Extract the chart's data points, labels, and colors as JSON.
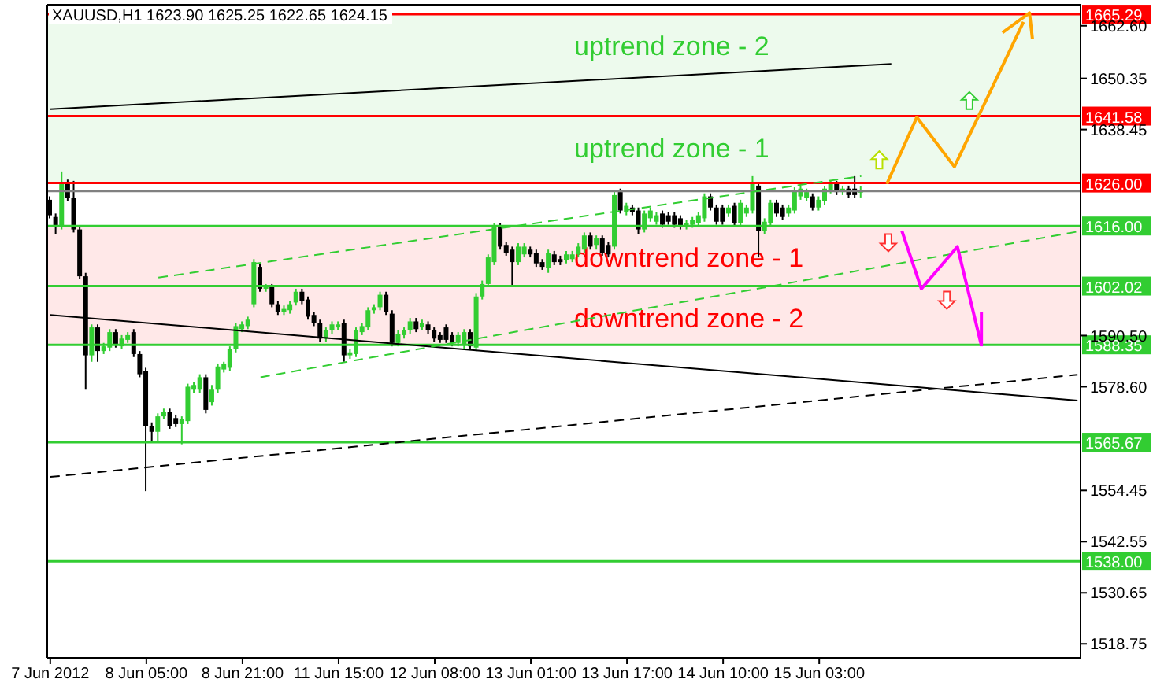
{
  "chart_data": {
    "type": "candlestick",
    "title": "XAUUSD,H1  1623.90 1625.25 1622.65 1624.15",
    "categories": [
      "7 Jun 2012",
      null,
      null,
      null,
      null,
      null,
      null,
      null,
      null,
      null,
      null,
      null,
      null,
      null,
      null,
      null,
      "8 Jun 05:00",
      null,
      null,
      null,
      null,
      null,
      null,
      null,
      null,
      null,
      null,
      null,
      null,
      null,
      null,
      null,
      "8 Jun 21:00",
      null,
      null,
      null,
      null,
      null,
      null,
      null,
      null,
      null,
      null,
      null,
      null,
      null,
      null,
      null,
      "11 Jun 15:00",
      null,
      null,
      null,
      null,
      null,
      null,
      null,
      null,
      null,
      null,
      null,
      null,
      null,
      null,
      null,
      "12 Jun 08:00",
      null,
      null,
      null,
      null,
      null,
      null,
      null,
      null,
      null,
      null,
      null,
      null,
      null,
      null,
      null,
      "13 Jun 01:00",
      null,
      null,
      null,
      null,
      null,
      null,
      null,
      null,
      null,
      null,
      null,
      null,
      null,
      null,
      null,
      "13 Jun 17:00",
      null,
      null,
      null,
      null,
      null,
      null,
      null,
      null,
      null,
      null,
      null,
      null,
      null,
      null,
      null,
      "14 Jun 10:00",
      null,
      null,
      null,
      null,
      null,
      null,
      null,
      null,
      null,
      null,
      null,
      null,
      null,
      null,
      null,
      "15 Jun 03:00",
      null,
      null,
      null,
      null,
      null,
      null,
      null,
      null,
      null,
      null,
      null,
      null,
      null,
      null,
      null,
      null,
      null,
      null,
      null,
      null,
      null,
      null,
      null,
      null,
      null,
      null,
      null,
      null,
      null,
      null,
      null,
      null,
      null,
      null,
      null,
      null,
      null,
      null,
      null,
      null,
      null,
      null,
      null
    ],
    "ohlc": [
      [
        1622.1,
        1622.9,
        1617.8,
        1618.5
      ],
      [
        1618.1,
        1618.9,
        1614.1,
        1616.0
      ],
      [
        1616.0,
        1628.7,
        1615.2,
        1625.8
      ],
      [
        1625.8,
        1626.8,
        1621.8,
        1622.5
      ],
      [
        1622.5,
        1626.5,
        1614.5,
        1615.2
      ],
      [
        1615.2,
        1616.0,
        1603.6,
        1604.3
      ],
      [
        1604.3,
        1605.1,
        1577.9,
        1585.9
      ],
      [
        1585.9,
        1593.1,
        1584.4,
        1592.4
      ],
      [
        1592.4,
        1593.1,
        1584.4,
        1586.9
      ],
      [
        1586.9,
        1588.8,
        1586.2,
        1588.0
      ],
      [
        1587.7,
        1592.0,
        1586.9,
        1591.3
      ],
      [
        1591.3,
        1592.0,
        1587.7,
        1588.4
      ],
      [
        1588.0,
        1590.6,
        1587.3,
        1589.8
      ],
      [
        1589.5,
        1591.3,
        1588.8,
        1590.6
      ],
      [
        1591.3,
        1592.0,
        1585.5,
        1586.2
      ],
      [
        1586.2,
        1586.9,
        1580.8,
        1581.5
      ],
      [
        1582.2,
        1583.0,
        1554.3,
        1569.5
      ],
      [
        1569.5,
        1570.3,
        1565.9,
        1568.1
      ],
      [
        1568.1,
        1572.4,
        1565.9,
        1571.7
      ],
      [
        1571.7,
        1573.5,
        1571.0,
        1572.8
      ],
      [
        1572.8,
        1573.5,
        1568.8,
        1569.5
      ],
      [
        1571.3,
        1572.1,
        1569.2,
        1569.9
      ],
      [
        1569.9,
        1571.7,
        1565.2,
        1571.0
      ],
      [
        1570.6,
        1579.3,
        1569.9,
        1578.6
      ],
      [
        1577.9,
        1579.7,
        1577.1,
        1579.0
      ],
      [
        1577.9,
        1581.5,
        1577.1,
        1580.8
      ],
      [
        1580.8,
        1581.5,
        1572.4,
        1573.2
      ],
      [
        1575.0,
        1579.0,
        1574.2,
        1577.9
      ],
      [
        1577.9,
        1584.0,
        1577.1,
        1583.3
      ],
      [
        1582.6,
        1584.4,
        1581.9,
        1584.0
      ],
      [
        1583.0,
        1588.0,
        1582.2,
        1587.3
      ],
      [
        1587.3,
        1593.5,
        1586.6,
        1592.7
      ],
      [
        1592.0,
        1593.8,
        1591.3,
        1593.1
      ],
      [
        1592.7,
        1594.9,
        1592.0,
        1594.2
      ],
      [
        1597.8,
        1608.3,
        1597.1,
        1607.6
      ],
      [
        1606.5,
        1607.3,
        1600.7,
        1601.4
      ],
      [
        1601.4,
        1602.5,
        1600.7,
        1602.2
      ],
      [
        1602.2,
        1602.5,
        1597.1,
        1597.8
      ],
      [
        1597.8,
        1598.5,
        1595.3,
        1596.0
      ],
      [
        1596.0,
        1597.5,
        1595.3,
        1596.7
      ],
      [
        1596.4,
        1598.5,
        1595.6,
        1597.8
      ],
      [
        1598.2,
        1601.4,
        1597.5,
        1600.7
      ],
      [
        1600.7,
        1601.4,
        1597.8,
        1598.5
      ],
      [
        1598.9,
        1599.6,
        1594.2,
        1594.9
      ],
      [
        1595.3,
        1596.0,
        1592.7,
        1593.5
      ],
      [
        1593.5,
        1594.2,
        1589.1,
        1589.8
      ],
      [
        1589.8,
        1592.4,
        1589.1,
        1591.7
      ],
      [
        1591.7,
        1593.8,
        1590.9,
        1593.1
      ],
      [
        1592.4,
        1593.8,
        1591.7,
        1593.1
      ],
      [
        1593.5,
        1594.2,
        1584.4,
        1585.9
      ],
      [
        1585.9,
        1587.3,
        1585.1,
        1586.6
      ],
      [
        1586.2,
        1592.4,
        1585.5,
        1591.7
      ],
      [
        1591.3,
        1593.5,
        1590.6,
        1592.7
      ],
      [
        1592.4,
        1597.1,
        1591.7,
        1596.4
      ],
      [
        1596.4,
        1597.8,
        1595.6,
        1597.1
      ],
      [
        1597.1,
        1600.7,
        1596.4,
        1600.0
      ],
      [
        1600.0,
        1600.7,
        1595.3,
        1596.0
      ],
      [
        1595.6,
        1596.4,
        1588.0,
        1588.8
      ],
      [
        1588.8,
        1591.7,
        1588.0,
        1590.9
      ],
      [
        1590.6,
        1592.4,
        1589.8,
        1591.7
      ],
      [
        1591.7,
        1594.6,
        1590.9,
        1593.8
      ],
      [
        1593.8,
        1594.6,
        1591.3,
        1592.0
      ],
      [
        1592.4,
        1594.2,
        1591.7,
        1593.5
      ],
      [
        1593.1,
        1593.8,
        1590.9,
        1591.7
      ],
      [
        1591.7,
        1592.4,
        1589.1,
        1589.8
      ],
      [
        1590.6,
        1591.3,
        1588.8,
        1589.5
      ],
      [
        1592.4,
        1593.1,
        1588.8,
        1589.5
      ],
      [
        1590.6,
        1591.3,
        1588.0,
        1588.8
      ],
      [
        1588.8,
        1591.3,
        1588.0,
        1590.6
      ],
      [
        1588.4,
        1592.0,
        1587.3,
        1591.3
      ],
      [
        1591.3,
        1592.0,
        1587.3,
        1588.0
      ],
      [
        1587.7,
        1600.4,
        1586.9,
        1599.6
      ],
      [
        1599.6,
        1603.3,
        1598.9,
        1602.5
      ],
      [
        1602.5,
        1609.4,
        1601.8,
        1608.7
      ],
      [
        1607.6,
        1616.7,
        1606.9,
        1616.0
      ],
      [
        1616.0,
        1616.7,
        1610.5,
        1611.2
      ],
      [
        1611.6,
        1612.3,
        1609.1,
        1609.8
      ],
      [
        1610.5,
        1611.2,
        1602.2,
        1607.6
      ],
      [
        1607.6,
        1612.0,
        1606.9,
        1611.2
      ],
      [
        1609.4,
        1612.0,
        1608.7,
        1611.2
      ],
      [
        1610.5,
        1611.2,
        1608.7,
        1609.4
      ],
      [
        1609.8,
        1610.5,
        1606.5,
        1607.3
      ],
      [
        1607.6,
        1608.3,
        1605.8,
        1606.5
      ],
      [
        1606.2,
        1610.5,
        1605.1,
        1609.8
      ],
      [
        1609.4,
        1610.2,
        1606.9,
        1607.6
      ],
      [
        1608.3,
        1609.1,
        1606.9,
        1607.6
      ],
      [
        1608.0,
        1610.2,
        1607.3,
        1609.4
      ],
      [
        1608.3,
        1610.2,
        1607.6,
        1609.4
      ],
      [
        1609.4,
        1612.0,
        1608.7,
        1611.2
      ],
      [
        1610.5,
        1614.5,
        1609.8,
        1613.8
      ],
      [
        1613.8,
        1614.5,
        1610.5,
        1611.2
      ],
      [
        1611.6,
        1613.8,
        1610.5,
        1613.1
      ],
      [
        1613.1,
        1613.8,
        1609.1,
        1609.8
      ],
      [
        1611.6,
        1612.3,
        1608.7,
        1609.4
      ],
      [
        1611.2,
        1623.9,
        1610.5,
        1623.2
      ],
      [
        1623.9,
        1624.7,
        1618.9,
        1619.6
      ],
      [
        1619.2,
        1621.4,
        1618.5,
        1620.7
      ],
      [
        1620.3,
        1621.0,
        1618.5,
        1619.2
      ],
      [
        1619.6,
        1620.3,
        1614.1,
        1615.2
      ],
      [
        1615.2,
        1619.6,
        1614.5,
        1618.9
      ],
      [
        1617.8,
        1620.3,
        1617.0,
        1619.6
      ],
      [
        1617.0,
        1619.2,
        1616.3,
        1618.5
      ],
      [
        1618.9,
        1619.6,
        1615.6,
        1616.3
      ],
      [
        1618.5,
        1619.2,
        1616.3,
        1617.0
      ],
      [
        1618.5,
        1619.2,
        1615.6,
        1616.3
      ],
      [
        1617.8,
        1618.5,
        1615.2,
        1616.0
      ],
      [
        1616.0,
        1617.4,
        1615.2,
        1616.7
      ],
      [
        1616.3,
        1618.1,
        1615.6,
        1617.4
      ],
      [
        1616.7,
        1619.2,
        1616.0,
        1618.5
      ],
      [
        1617.8,
        1623.6,
        1617.0,
        1622.9
      ],
      [
        1622.9,
        1623.6,
        1619.6,
        1620.3
      ],
      [
        1620.3,
        1621.0,
        1616.3,
        1617.0
      ],
      [
        1620.3,
        1621.0,
        1616.3,
        1617.0
      ],
      [
        1618.9,
        1621.0,
        1618.1,
        1620.3
      ],
      [
        1620.7,
        1621.4,
        1616.0,
        1616.7
      ],
      [
        1616.7,
        1622.1,
        1616.0,
        1621.4
      ],
      [
        1618.9,
        1621.0,
        1618.1,
        1620.3
      ],
      [
        1619.6,
        1627.6,
        1618.9,
        1625.8
      ],
      [
        1625.4,
        1626.1,
        1608.7,
        1614.9
      ],
      [
        1614.9,
        1617.8,
        1614.1,
        1617.0
      ],
      [
        1616.7,
        1622.1,
        1616.0,
        1621.4
      ],
      [
        1621.4,
        1622.1,
        1618.1,
        1618.9
      ],
      [
        1620.3,
        1621.0,
        1617.4,
        1618.1
      ],
      [
        1618.9,
        1621.0,
        1618.1,
        1620.3
      ],
      [
        1619.6,
        1625.0,
        1618.9,
        1624.3
      ],
      [
        1622.9,
        1625.4,
        1622.1,
        1624.7
      ],
      [
        1622.5,
        1624.7,
        1621.8,
        1623.9
      ],
      [
        1622.9,
        1623.6,
        1619.6,
        1620.3
      ],
      [
        1620.3,
        1622.9,
        1619.6,
        1622.1
      ],
      [
        1621.8,
        1625.4,
        1621.0,
        1624.7
      ],
      [
        1624.3,
        1626.5,
        1623.6,
        1625.8
      ],
      [
        1625.8,
        1626.5,
        1623.2,
        1623.9
      ],
      [
        1623.9,
        1625.4,
        1623.2,
        1624.7
      ],
      [
        1624.7,
        1625.4,
        1622.5,
        1623.2
      ],
      [
        1624.7,
        1627.6,
        1622.5,
        1623.2
      ],
      [
        1623.9,
        1625.25,
        1622.65,
        1624.15
      ],
      null,
      null,
      null,
      null,
      null,
      null,
      null,
      null,
      null,
      null,
      null,
      null,
      null,
      null,
      null,
      null,
      null,
      null,
      null,
      null,
      null,
      null,
      null,
      null,
      null,
      null,
      null,
      null,
      null,
      null,
      null,
      null,
      null,
      null,
      null,
      null
    ],
    "colors": [
      "#000000",
      "#000000",
      "#32cd32",
      "#000000",
      "#000000",
      "#000000",
      "#000000",
      "#32cd32",
      "#000000",
      "#32cd32",
      "#32cd32",
      "#000000",
      "#32cd32",
      "#32cd32",
      "#000000",
      "#000000",
      "#000000",
      "#000000",
      "#32cd32",
      "#32cd32",
      "#000000",
      "#000000",
      "#32cd32",
      "#32cd32",
      "#32cd32",
      "#32cd32",
      "#000000",
      "#32cd32",
      "#32cd32",
      "#32cd32",
      "#32cd32",
      "#32cd32",
      "#32cd32",
      "#32cd32",
      "#32cd32",
      "#000000",
      "#32cd32",
      "#000000",
      "#000000",
      "#32cd32",
      "#32cd32",
      "#32cd32",
      "#000000",
      "#000000",
      "#000000",
      "#000000",
      "#32cd32",
      "#32cd32",
      "#32cd32",
      "#000000",
      "#32cd32",
      "#32cd32",
      "#32cd32",
      "#32cd32",
      "#32cd32",
      "#32cd32",
      "#000000",
      "#000000",
      "#32cd32",
      "#32cd32",
      "#32cd32",
      "#000000",
      "#32cd32",
      "#000000",
      "#000000",
      "#000000",
      "#000000",
      "#000000",
      "#32cd32",
      "#32cd32",
      "#000000",
      "#32cd32",
      "#32cd32",
      "#32cd32",
      "#32cd32",
      "#000000",
      "#000000",
      "#000000",
      "#32cd32",
      "#32cd32",
      "#000000",
      "#000000",
      "#000000",
      "#32cd32",
      "#000000",
      "#000000",
      "#32cd32",
      "#32cd32",
      "#32cd32",
      "#32cd32",
      "#000000",
      "#32cd32",
      "#000000",
      "#000000",
      "#32cd32",
      "#000000",
      "#32cd32",
      "#000000",
      "#000000",
      "#32cd32",
      "#32cd32",
      "#32cd32",
      "#000000",
      "#000000",
      "#000000",
      "#000000",
      "#32cd32",
      "#32cd32",
      "#32cd32",
      "#32cd32",
      "#000000",
      "#000000",
      "#000000",
      "#32cd32",
      "#000000",
      "#32cd32",
      "#32cd32",
      "#32cd32",
      "#000000",
      "#32cd32",
      "#32cd32",
      "#000000",
      "#000000",
      "#32cd32",
      "#32cd32",
      "#32cd32",
      "#32cd32",
      "#000000",
      "#32cd32",
      "#32cd32",
      "#32cd32",
      "#000000",
      "#32cd32",
      "#000000",
      "#000000",
      "#32cd32",
      null,
      null,
      null,
      null,
      null,
      null,
      null,
      null,
      null,
      null,
      null,
      null,
      null,
      null,
      null,
      null,
      null,
      null,
      null,
      null,
      null,
      null,
      null,
      null,
      null,
      null,
      null,
      null,
      null,
      null,
      null,
      null,
      null,
      null,
      null,
      null
    ],
    "ylim": [
      1515.5,
      1667.5
    ],
    "yticks": [
      {
        "value": 1662.6,
        "label": "1662.60"
      },
      1650.35,
      1638.45,
      {
        "value": 1590.5,
        "label": "1590.50"
      },
      {
        "value": 1578.6,
        "label": "1578.60"
      },
      1554.45,
      1542.55,
      1530.65,
      1518.75
    ],
    "series": [
      {
        "type": "line",
        "color": "#000000",
        "line_style": "solid",
        "values": [
          1595.3,
          null,
          null,
          null,
          null,
          null,
          null,
          null,
          null,
          null,
          null,
          null,
          null,
          null,
          null,
          null,
          null,
          null,
          null,
          null,
          null,
          null,
          null,
          null,
          null,
          null,
          null,
          null,
          null,
          null,
          null,
          null,
          null,
          null,
          null,
          null,
          null,
          null,
          null,
          null,
          null,
          null,
          null,
          null,
          null,
          null,
          null,
          null,
          null,
          null,
          null,
          null,
          null,
          null,
          null,
          null,
          null,
          null,
          null,
          null,
          null,
          null,
          null,
          null,
          null,
          null,
          null,
          null,
          null,
          null,
          null,
          null,
          null,
          null,
          null,
          null,
          null,
          null,
          null,
          null,
          null,
          null,
          null,
          null,
          null,
          null,
          null,
          null,
          null,
          null,
          null,
          null,
          null,
          null,
          null,
          null,
          null,
          null,
          null,
          null,
          null,
          null,
          null,
          null,
          null,
          null,
          null,
          null,
          null,
          null,
          null,
          null,
          null,
          null,
          null,
          null,
          null,
          null,
          null,
          null,
          null,
          null,
          null,
          null,
          null,
          null,
          null,
          null,
          null,
          null,
          null,
          null,
          null,
          null,
          null,
          null,
          null,
          null,
          null,
          null,
          null,
          null,
          null,
          null,
          null,
          null,
          null,
          null,
          null,
          null,
          null,
          null,
          null,
          null,
          null,
          null,
          null,
          null,
          null,
          null,
          null,
          null,
          null,
          null,
          null,
          null,
          null,
          null,
          null,
          null,
          null,
          1575.4
        ]
      },
      {
        "type": "line",
        "color": "#000000",
        "line_style": "dashed",
        "values": [
          1557.6,
          null,
          null,
          null,
          null,
          null,
          null,
          null,
          null,
          null,
          null,
          null,
          null,
          null,
          null,
          null,
          null,
          null,
          null,
          null,
          null,
          null,
          null,
          null,
          null,
          null,
          null,
          null,
          null,
          null,
          null,
          null,
          null,
          null,
          null,
          null,
          null,
          null,
          null,
          null,
          null,
          null,
          null,
          null,
          null,
          null,
          null,
          null,
          null,
          null,
          null,
          null,
          null,
          null,
          null,
          null,
          null,
          null,
          null,
          null,
          null,
          null,
          null,
          null,
          null,
          null,
          null,
          null,
          null,
          null,
          null,
          null,
          null,
          null,
          null,
          null,
          null,
          null,
          null,
          null,
          null,
          null,
          null,
          null,
          null,
          null,
          null,
          null,
          null,
          null,
          null,
          null,
          null,
          null,
          null,
          null,
          null,
          null,
          null,
          null,
          null,
          null,
          null,
          null,
          null,
          null,
          null,
          null,
          null,
          null,
          null,
          null,
          null,
          null,
          null,
          null,
          null,
          null,
          null,
          null,
          null,
          null,
          null,
          null,
          null,
          null,
          null,
          null,
          null,
          null,
          null,
          null,
          null,
          null,
          null,
          null,
          null,
          null,
          null,
          null,
          null,
          null,
          null,
          null,
          null,
          null,
          null,
          null,
          null,
          null,
          null,
          null,
          null,
          null,
          null,
          null,
          null,
          null,
          null,
          null,
          null,
          null,
          null,
          null,
          null,
          null,
          null,
          null,
          null,
          null,
          null,
          1581.4
        ]
      },
      {
        "type": "line",
        "color": "#000000",
        "line_style": "solid",
        "values": [
          1643.2,
          null,
          null,
          null,
          null,
          null,
          null,
          null,
          null,
          null,
          null,
          null,
          null,
          null,
          null,
          null,
          null,
          null,
          null,
          null,
          null,
          null,
          null,
          null,
          null,
          null,
          null,
          null,
          null,
          null,
          null,
          null,
          null,
          null,
          null,
          null,
          null,
          null,
          null,
          null,
          null,
          null,
          null,
          null,
          null,
          null,
          null,
          null,
          null,
          null,
          null,
          null,
          null,
          null,
          null,
          null,
          null,
          null,
          null,
          null,
          null,
          null,
          null,
          null,
          null,
          null,
          null,
          null,
          null,
          null,
          null,
          null,
          null,
          null,
          null,
          null,
          null,
          null,
          null,
          null,
          null,
          null,
          null,
          null,
          null,
          null,
          null,
          null,
          null,
          null,
          null,
          null,
          null,
          null,
          null,
          null,
          null,
          null,
          null,
          null,
          null,
          null,
          null,
          null,
          null,
          null,
          null,
          null,
          null,
          null,
          null,
          null,
          null,
          null,
          null,
          null,
          null,
          null,
          null,
          null,
          null,
          null,
          null,
          null,
          null,
          null,
          null,
          null,
          null,
          null,
          null,
          null,
          null,
          null,
          null,
          null,
          null,
          null,
          null,
          null,
          1653.7,
          null,
          null,
          null,
          null,
          null,
          null,
          null,
          null,
          null,
          null,
          null,
          null,
          null,
          null,
          null,
          null,
          null,
          null,
          null,
          null,
          null,
          null,
          null,
          null,
          null,
          null,
          null,
          null,
          null,
          null,
          null
        ]
      },
      {
        "type": "line",
        "color": "#32cd32",
        "line_style": "dashed",
        "values": [
          null,
          null,
          null,
          null,
          null,
          null,
          null,
          null,
          null,
          null,
          null,
          null,
          null,
          null,
          null,
          null,
          null,
          null,
          1604.0,
          null,
          null,
          null,
          null,
          null,
          null,
          null,
          null,
          null,
          null,
          null,
          null,
          null,
          null,
          null,
          null,
          null,
          null,
          null,
          null,
          null,
          null,
          null,
          null,
          null,
          null,
          null,
          null,
          null,
          null,
          null,
          null,
          null,
          null,
          null,
          null,
          null,
          null,
          null,
          null,
          null,
          null,
          null,
          null,
          null,
          null,
          null,
          null,
          null,
          null,
          null,
          null,
          null,
          null,
          null,
          null,
          null,
          null,
          null,
          null,
          null,
          null,
          null,
          null,
          null,
          null,
          null,
          null,
          null,
          null,
          null,
          null,
          null,
          null,
          null,
          null,
          null,
          null,
          null,
          null,
          null,
          null,
          null,
          null,
          null,
          null,
          null,
          null,
          null,
          null,
          null,
          null,
          null,
          null,
          null,
          null,
          null,
          null,
          null,
          null,
          null,
          null,
          null,
          null,
          null,
          null,
          null,
          null,
          null,
          null,
          null,
          null,
          null,
          null,
          null,
          null,
          1627.6,
          null,
          null,
          null,
          null,
          null,
          null,
          null,
          null,
          null,
          null,
          null,
          null,
          null,
          null,
          null,
          null,
          null,
          null,
          null,
          null,
          null,
          null,
          null,
          null,
          null,
          null,
          null,
          null,
          null,
          null,
          null,
          null,
          null,
          null,
          null,
          null
        ]
      },
      {
        "type": "line",
        "color": "#32cd32",
        "line_style": "dashed",
        "values": [
          null,
          null,
          null,
          null,
          null,
          null,
          null,
          null,
          null,
          null,
          null,
          null,
          null,
          null,
          null,
          null,
          null,
          null,
          null,
          null,
          null,
          null,
          null,
          null,
          null,
          null,
          null,
          null,
          null,
          null,
          null,
          null,
          null,
          null,
          null,
          1580.8,
          null,
          null,
          null,
          null,
          null,
          null,
          null,
          null,
          null,
          null,
          null,
          null,
          null,
          null,
          null,
          null,
          null,
          null,
          null,
          null,
          null,
          null,
          null,
          null,
          null,
          null,
          null,
          null,
          null,
          null,
          null,
          null,
          null,
          null,
          null,
          null,
          null,
          null,
          null,
          null,
          null,
          null,
          null,
          null,
          null,
          null,
          null,
          null,
          null,
          null,
          null,
          null,
          null,
          null,
          null,
          null,
          null,
          null,
          null,
          null,
          null,
          null,
          null,
          null,
          null,
          null,
          null,
          null,
          null,
          null,
          null,
          null,
          null,
          null,
          null,
          null,
          null,
          null,
          null,
          null,
          null,
          null,
          null,
          null,
          null,
          null,
          null,
          null,
          null,
          null,
          null,
          null,
          null,
          null,
          null,
          null,
          null,
          null,
          null,
          null,
          null,
          null,
          null,
          null,
          null,
          null,
          null,
          null,
          null,
          null,
          null,
          null,
          null,
          null,
          null,
          null,
          null,
          null,
          null,
          null,
          null,
          null,
          null,
          null,
          null,
          null,
          null,
          null,
          null,
          null,
          null,
          null,
          null,
          null,
          null,
          1614.7
        ]
      }
    ],
    "ref_lines": [
      {
        "axis": "y",
        "value": 1665.29,
        "label": "1665.29",
        "color": "#ff0000"
      },
      {
        "axis": "y",
        "value": 1641.58,
        "label": "1641.58",
        "color": "#ff0000"
      },
      {
        "axis": "y",
        "value": 1626.0,
        "label": "1626.00",
        "color": "#ff0000"
      },
      {
        "axis": "y",
        "value": 1624.15,
        "color": "#808080"
      },
      {
        "axis": "y",
        "value": 1616.0,
        "label": "1616.00",
        "color": "#32cd32"
      },
      {
        "axis": "y",
        "value": 1602.02,
        "label": "1602.02",
        "color": "#32cd32"
      },
      {
        "axis": "y",
        "value": 1588.35,
        "label": "1588.35",
        "color": "#32cd32"
      },
      {
        "axis": "y",
        "value": 1565.67,
        "label": "1565.67",
        "color": "#32cd32"
      },
      {
        "axis": "y",
        "value": 1538.0,
        "label": "1538.00",
        "color": "#32cd32"
      }
    ],
    "bands": [
      {
        "axis": "y",
        "from": 1641.58,
        "to": 1665.29,
        "label": "uptrend zone - 2",
        "color": "#32cd32"
      },
      {
        "axis": "y",
        "from": 1626.0,
        "to": 1641.58,
        "label": "uptrend zone - 1",
        "color": "#32cd32"
      },
      {
        "axis": "y",
        "from": 1602.02,
        "to": 1616.0,
        "label": "downtrend zone - 1",
        "color": "#ff0000"
      },
      {
        "axis": "y",
        "from": 1588.35,
        "to": 1602.02,
        "label": "downtrend zone - 2",
        "color": "#ff0000"
      }
    ],
    "grid": false
  }
}
